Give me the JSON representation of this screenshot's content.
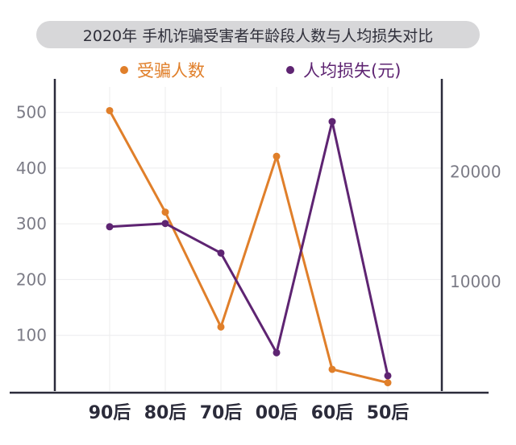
{
  "chart_data": {
    "type": "line",
    "title": "2020年 手机诈骗受害者年龄段人数与人均损失对比",
    "categories": [
      "90后",
      "80后",
      "70后",
      "00后",
      "60后",
      "50后"
    ],
    "series": [
      {
        "name": "受骗人数",
        "axis": "left",
        "color": "#e07f2a",
        "values": [
          503,
          321,
          115,
          421,
          39,
          15
        ]
      },
      {
        "name": "人均损失(元)",
        "axis": "right",
        "color": "#5e2472",
        "values": [
          15000,
          15300,
          12600,
          3500,
          24600,
          1400
        ]
      }
    ],
    "y_left": {
      "ticks": [
        100,
        200,
        300,
        400,
        500
      ],
      "range": [
        0,
        560
      ]
    },
    "y_right": {
      "ticks": [
        10000,
        20000
      ],
      "range": [
        0,
        28500
      ]
    },
    "grid": true,
    "legend_position": "top"
  }
}
